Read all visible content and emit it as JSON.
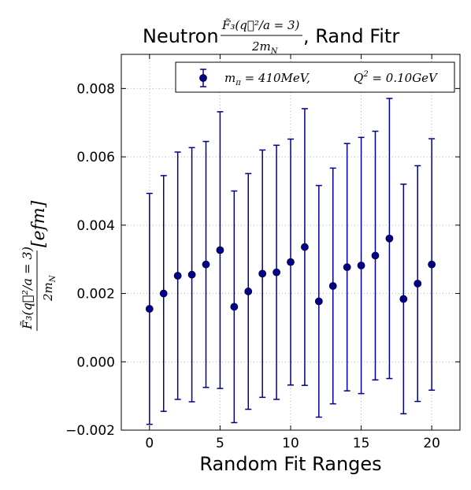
{
  "chart_data": {
    "type": "scatter",
    "title_prefix": "Neutron",
    "title_fraction_num": "F̃₃(q⃗²/a = 3)",
    "title_fraction_den": "2m",
    "title_fraction_den_sub": "N",
    "title_suffix": ", Rand Fitr",
    "xlabel": "Random Fit Ranges",
    "ylabel_num": "F̃₃(q⃗²/a = 3)",
    "ylabel_den": "2m",
    "ylabel_den_sub": "N",
    "ylabel_unit": "[efm]",
    "xlim": [
      -2,
      22
    ],
    "ylim": [
      -0.002,
      0.009
    ],
    "xticks": [
      0,
      5,
      10,
      15,
      20
    ],
    "xtick_labels": [
      "0",
      "5",
      "10",
      "15",
      "20"
    ],
    "yticks": [
      -0.002,
      0.0,
      0.002,
      0.004,
      0.006,
      0.008
    ],
    "ytick_labels": [
      "−0.002",
      "0.000",
      "0.002",
      "0.004",
      "0.006",
      "0.008"
    ],
    "grid": true,
    "legend_position": "top-right",
    "color": "#00008b",
    "series": [
      {
        "name": "m_π = 410MeV,     Q² = 0.10GeV",
        "legend_parts": {
          "m": "m",
          "m_sub": "π",
          "m_val": " = 410MeV,",
          "q": "Q",
          "q_sup": "2",
          "q_val": " = 0.10GeV"
        },
        "x": [
          0,
          1,
          2,
          3,
          4,
          5,
          6,
          7,
          8,
          9,
          10,
          11,
          12,
          13,
          14,
          15,
          16,
          17,
          18,
          19,
          20
        ],
        "y": [
          0.00155,
          0.002,
          0.00252,
          0.00255,
          0.00285,
          0.00327,
          0.00161,
          0.00206,
          0.00258,
          0.00262,
          0.00292,
          0.00336,
          0.00177,
          0.00222,
          0.00277,
          0.00282,
          0.00311,
          0.00361,
          0.00184,
          0.00229,
          0.00285
        ],
        "yerr": [
          0.00338,
          0.00345,
          0.00362,
          0.00372,
          0.0036,
          0.00405,
          0.00339,
          0.00345,
          0.00362,
          0.00372,
          0.0036,
          0.00405,
          0.00339,
          0.00345,
          0.00362,
          0.00375,
          0.00364,
          0.0041,
          0.00336,
          0.00345,
          0.00368
        ]
      }
    ]
  }
}
